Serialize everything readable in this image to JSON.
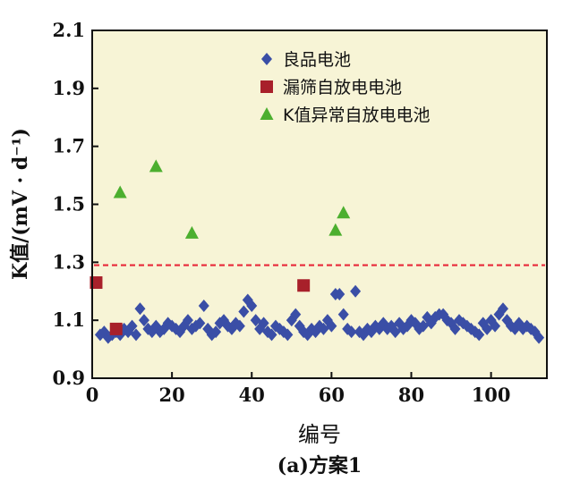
{
  "chart_data": {
    "type": "scatter",
    "title": "",
    "xlabel": "编号",
    "ylabel": "K值/(mV · d⁻¹)",
    "caption": "(a)方案1",
    "xlim": [
      0,
      114
    ],
    "ylim": [
      0.9,
      2.1
    ],
    "xticks": [
      "0",
      "20",
      "40",
      "60",
      "80",
      "100"
    ],
    "yticks": [
      "0.9",
      "1.1",
      "1.3",
      "1.5",
      "1.7",
      "1.9",
      "2.1"
    ],
    "grid": false,
    "legend_position": "top-right",
    "background": "#f7f4d6",
    "threshold": {
      "y": 1.29,
      "color": "#e8283a",
      "style": "dashed"
    },
    "series": [
      {
        "name": "良品电池",
        "marker": "diamond",
        "color": "#3a4ea6",
        "points": [
          [
            2,
            1.05
          ],
          [
            3,
            1.06
          ],
          [
            4,
            1.04
          ],
          [
            5,
            1.05
          ],
          [
            6,
            1.06
          ],
          [
            7,
            1.05
          ],
          [
            8,
            1.07
          ],
          [
            9,
            1.06
          ],
          [
            10,
            1.08
          ],
          [
            11,
            1.05
          ],
          [
            12,
            1.14
          ],
          [
            13,
            1.1
          ],
          [
            14,
            1.07
          ],
          [
            15,
            1.06
          ],
          [
            16,
            1.08
          ],
          [
            17,
            1.06
          ],
          [
            18,
            1.07
          ],
          [
            19,
            1.09
          ],
          [
            20,
            1.08
          ],
          [
            21,
            1.07
          ],
          [
            22,
            1.06
          ],
          [
            23,
            1.08
          ],
          [
            24,
            1.1
          ],
          [
            25,
            1.07
          ],
          [
            26,
            1.08
          ],
          [
            27,
            1.09
          ],
          [
            28,
            1.15
          ],
          [
            29,
            1.07
          ],
          [
            30,
            1.05
          ],
          [
            31,
            1.06
          ],
          [
            32,
            1.09
          ],
          [
            33,
            1.1
          ],
          [
            34,
            1.08
          ],
          [
            35,
            1.07
          ],
          [
            36,
            1.09
          ],
          [
            37,
            1.08
          ],
          [
            38,
            1.13
          ],
          [
            39,
            1.17
          ],
          [
            40,
            1.15
          ],
          [
            41,
            1.1
          ],
          [
            42,
            1.07
          ],
          [
            43,
            1.09
          ],
          [
            44,
            1.06
          ],
          [
            45,
            1.05
          ],
          [
            46,
            1.08
          ],
          [
            47,
            1.07
          ],
          [
            48,
            1.06
          ],
          [
            49,
            1.05
          ],
          [
            50,
            1.1
          ],
          [
            51,
            1.12
          ],
          [
            52,
            1.08
          ],
          [
            53,
            1.06
          ],
          [
            54,
            1.05
          ],
          [
            55,
            1.07
          ],
          [
            56,
            1.06
          ],
          [
            57,
            1.08
          ],
          [
            58,
            1.07
          ],
          [
            59,
            1.1
          ],
          [
            60,
            1.08
          ],
          [
            61,
            1.19
          ],
          [
            62,
            1.19
          ],
          [
            63,
            1.12
          ],
          [
            64,
            1.07
          ],
          [
            65,
            1.06
          ],
          [
            66,
            1.2
          ],
          [
            67,
            1.06
          ],
          [
            68,
            1.05
          ],
          [
            69,
            1.07
          ],
          [
            70,
            1.06
          ],
          [
            71,
            1.08
          ],
          [
            72,
            1.07
          ],
          [
            73,
            1.09
          ],
          [
            74,
            1.07
          ],
          [
            75,
            1.08
          ],
          [
            76,
            1.06
          ],
          [
            77,
            1.09
          ],
          [
            78,
            1.07
          ],
          [
            79,
            1.08
          ],
          [
            80,
            1.1
          ],
          [
            81,
            1.09
          ],
          [
            82,
            1.07
          ],
          [
            83,
            1.08
          ],
          [
            84,
            1.11
          ],
          [
            85,
            1.09
          ],
          [
            86,
            1.11
          ],
          [
            87,
            1.12
          ],
          [
            88,
            1.12
          ],
          [
            89,
            1.1
          ],
          [
            90,
            1.09
          ],
          [
            91,
            1.07
          ],
          [
            92,
            1.1
          ],
          [
            93,
            1.09
          ],
          [
            94,
            1.08
          ],
          [
            95,
            1.07
          ],
          [
            96,
            1.06
          ],
          [
            97,
            1.05
          ],
          [
            98,
            1.09
          ],
          [
            99,
            1.07
          ],
          [
            100,
            1.1
          ],
          [
            101,
            1.08
          ],
          [
            102,
            1.12
          ],
          [
            103,
            1.14
          ],
          [
            104,
            1.1
          ],
          [
            105,
            1.08
          ],
          [
            106,
            1.07
          ],
          [
            107,
            1.09
          ],
          [
            108,
            1.07
          ],
          [
            109,
            1.08
          ],
          [
            110,
            1.07
          ],
          [
            111,
            1.06
          ],
          [
            112,
            1.04
          ]
        ]
      },
      {
        "name": "漏筛自放电电池",
        "marker": "square",
        "color": "#a8202a",
        "points": [
          [
            1,
            1.23
          ],
          [
            6,
            1.07
          ],
          [
            53,
            1.22
          ]
        ]
      },
      {
        "name": "K值异常自放电电池",
        "marker": "triangle",
        "color": "#4caf2f",
        "points": [
          [
            7,
            1.54
          ],
          [
            16,
            1.63
          ],
          [
            25,
            1.4
          ],
          [
            61,
            1.41
          ],
          [
            63,
            1.47
          ]
        ]
      }
    ]
  }
}
